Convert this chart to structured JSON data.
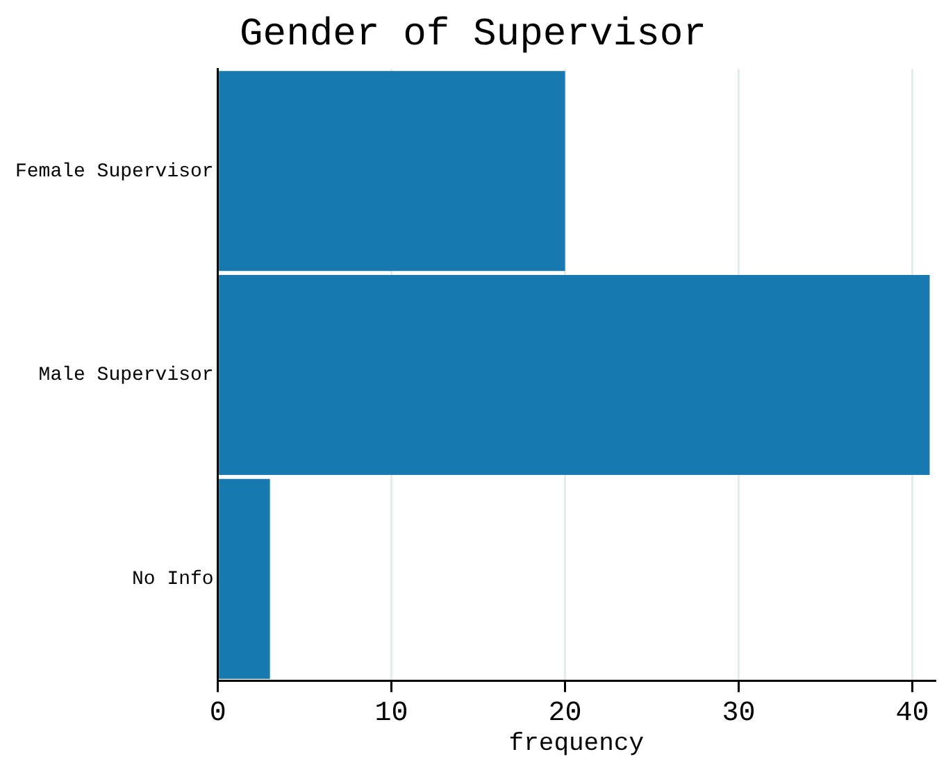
{
  "chart_data": {
    "type": "bar",
    "orientation": "horizontal",
    "title": "Gender of Supervisor",
    "xlabel": "frequency",
    "categories": [
      "Female Supervisor",
      "Male Supervisor",
      "No Info"
    ],
    "values": [
      20,
      41,
      3
    ],
    "color": "#1878b0",
    "xlim": [
      0,
      41.3
    ],
    "xticks": [
      0,
      10,
      20,
      30,
      40
    ],
    "grid": "x"
  }
}
